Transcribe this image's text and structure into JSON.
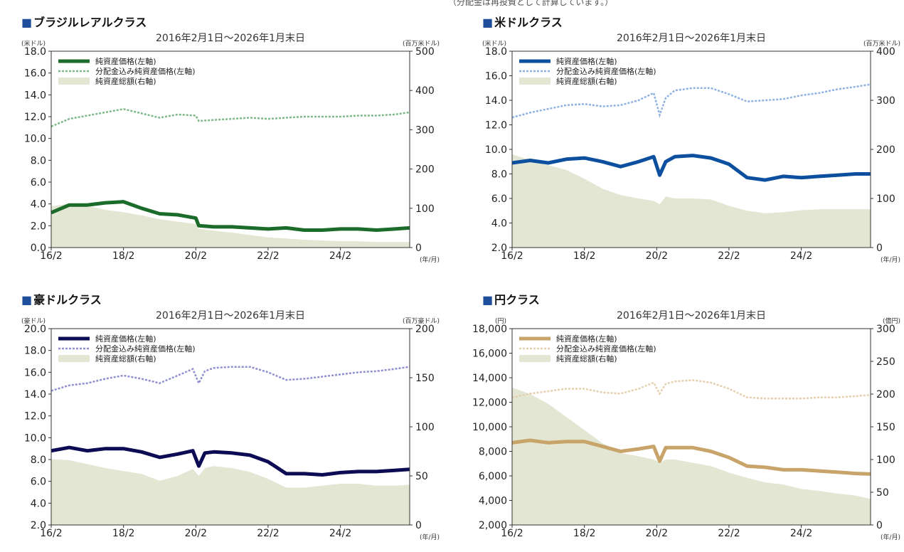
{
  "note": "（分配金は再投資として計算しています。）",
  "chart_data": [
    {
      "type": "line",
      "title": "ブラジルレアルクラス",
      "subtitle": "2016年2月1日〜2026年1月末日",
      "left_unit": "(米ドル)",
      "right_unit": "(百万米ドル)",
      "x_unit": "(年/月)",
      "x_ticks": [
        "16/2",
        "18/2",
        "20/2",
        "22/2",
        "24/2"
      ],
      "x_range": [
        "2016-02",
        "2026-01"
      ],
      "ylim_left": [
        0,
        18
      ],
      "yticks_left": [
        "0.0",
        "2.0",
        "4.0",
        "6.0",
        "8.0",
        "10.0",
        "12.0",
        "14.0",
        "16.0",
        "18.0"
      ],
      "ylim_right": [
        0,
        500
      ],
      "yticks_right": [
        "0",
        "100",
        "200",
        "300",
        "400",
        "500"
      ],
      "legend": [
        "純資産価格(左軸)",
        "分配金込み純資産価格(左軸)",
        "純資産総額(右軸)"
      ],
      "colors": {
        "nav": "#1b6b2a",
        "reinvested": "#7fb98a",
        "assets": "#e3e6d3"
      },
      "x": [
        "2016-02",
        "2016-08",
        "2017-02",
        "2017-08",
        "2018-02",
        "2018-08",
        "2019-02",
        "2019-08",
        "2020-02",
        "2020-03",
        "2020-08",
        "2021-02",
        "2021-08",
        "2022-02",
        "2022-08",
        "2023-02",
        "2023-08",
        "2024-02",
        "2024-08",
        "2025-02",
        "2025-08",
        "2026-01"
      ],
      "series": [
        {
          "name": "純資産価格(左軸)",
          "axis": "left",
          "style": "thick",
          "values": [
            3.2,
            3.9,
            3.9,
            4.1,
            4.2,
            3.6,
            3.1,
            3.0,
            2.7,
            2.0,
            1.9,
            1.9,
            1.8,
            1.7,
            1.8,
            1.6,
            1.6,
            1.7,
            1.7,
            1.6,
            1.7,
            1.8
          ]
        },
        {
          "name": "分配金込み純資産価格(左軸)",
          "axis": "left",
          "style": "dashed",
          "values": [
            11.1,
            11.8,
            12.1,
            12.4,
            12.7,
            12.3,
            11.9,
            12.2,
            12.1,
            11.6,
            11.7,
            11.8,
            11.9,
            11.8,
            11.9,
            12.0,
            12.0,
            12.0,
            12.1,
            12.1,
            12.2,
            12.4
          ]
        },
        {
          "name": "純資産総額(右軸)",
          "axis": "right",
          "style": "area",
          "values": [
            105,
            112,
            106,
            96,
            90,
            82,
            72,
            66,
            60,
            48,
            43,
            38,
            32,
            26,
            23,
            20,
            18,
            16,
            16,
            14,
            14,
            14
          ]
        }
      ]
    },
    {
      "type": "line",
      "title": "米ドルクラス",
      "subtitle": "2016年2月1日〜2026年1月末日",
      "left_unit": "(米ドル)",
      "right_unit": "(百万米ドル)",
      "x_unit": "(年/月)",
      "x_ticks": [
        "16/2",
        "18/2",
        "20/2",
        "22/2",
        "24/2"
      ],
      "x_range": [
        "2016-02",
        "2026-01"
      ],
      "ylim_left": [
        2,
        18
      ],
      "yticks_left": [
        "2.0",
        "4.0",
        "6.0",
        "8.0",
        "10.0",
        "12.0",
        "14.0",
        "16.0",
        "18.0"
      ],
      "ylim_right": [
        0,
        400
      ],
      "yticks_right": [
        "0",
        "100",
        "200",
        "300",
        "400"
      ],
      "legend": [
        "純資産価格(左軸)",
        "分配金込み純資産価格(左軸)",
        "純資産総額(右軸)"
      ],
      "colors": {
        "nav": "#0b4f9e",
        "reinvested": "#8fb2e0",
        "assets": "#e3e6d3"
      },
      "x": [
        "2016-02",
        "2016-08",
        "2017-02",
        "2017-08",
        "2018-02",
        "2018-08",
        "2019-02",
        "2019-08",
        "2020-01",
        "2020-03",
        "2020-05",
        "2020-08",
        "2021-02",
        "2021-08",
        "2022-02",
        "2022-08",
        "2023-02",
        "2023-08",
        "2024-02",
        "2024-08",
        "2025-02",
        "2025-08",
        "2026-01"
      ],
      "series": [
        {
          "name": "純資産価格(左軸)",
          "axis": "left",
          "style": "thick",
          "values": [
            8.9,
            9.1,
            8.9,
            9.2,
            9.3,
            9.0,
            8.6,
            9.0,
            9.4,
            7.9,
            9.0,
            9.4,
            9.5,
            9.3,
            8.8,
            7.7,
            7.5,
            7.8,
            7.7,
            7.8,
            7.9,
            8.0,
            8.0
          ]
        },
        {
          "name": "分配金込み純資産価格(左軸)",
          "axis": "left",
          "style": "dashed",
          "values": [
            12.6,
            13.0,
            13.3,
            13.6,
            13.7,
            13.5,
            13.6,
            14.0,
            14.6,
            12.8,
            14.2,
            14.8,
            15.0,
            15.0,
            14.5,
            13.9,
            14.0,
            14.1,
            14.4,
            14.6,
            14.9,
            15.1,
            15.3
          ]
        },
        {
          "name": "純資産総額(右軸)",
          "axis": "right",
          "style": "area",
          "values": [
            190,
            178,
            168,
            158,
            140,
            120,
            107,
            100,
            95,
            88,
            104,
            100,
            100,
            98,
            85,
            75,
            70,
            72,
            76,
            78,
            78,
            78,
            78
          ]
        }
      ]
    },
    {
      "type": "line",
      "title": "豪ドルクラス",
      "subtitle": "2016年2月1日〜2026年1月末日",
      "left_unit": "(豪ドル)",
      "right_unit": "(百万豪ドル)",
      "x_unit": "(年/月)",
      "x_ticks": [
        "16/2",
        "18/2",
        "20/2",
        "22/2",
        "24/2"
      ],
      "x_range": [
        "2016-02",
        "2026-01"
      ],
      "ylim_left": [
        2,
        20
      ],
      "yticks_left": [
        "2.0",
        "4.0",
        "6.0",
        "8.0",
        "10.0",
        "12.0",
        "14.0",
        "16.0",
        "18.0",
        "20.0"
      ],
      "ylim_right": [
        0,
        200
      ],
      "yticks_right": [
        "0",
        "50",
        "100",
        "150",
        "200"
      ],
      "legend": [
        "純資産価格(左軸)",
        "分配金込み純資産価格(左軸)",
        "純資産総額(右軸)"
      ],
      "colors": {
        "nav": "#0c0c55",
        "reinvested": "#9090d0",
        "assets": "#e3e6d3"
      },
      "x": [
        "2016-02",
        "2016-08",
        "2017-02",
        "2017-08",
        "2018-02",
        "2018-08",
        "2019-02",
        "2019-08",
        "2020-01",
        "2020-03",
        "2020-05",
        "2020-08",
        "2021-02",
        "2021-08",
        "2022-02",
        "2022-08",
        "2023-02",
        "2023-08",
        "2024-02",
        "2024-08",
        "2025-02",
        "2025-08",
        "2026-01"
      ],
      "series": [
        {
          "name": "純資産価格(左軸)",
          "axis": "left",
          "style": "thick",
          "values": [
            8.8,
            9.1,
            8.8,
            9.0,
            9.0,
            8.7,
            8.2,
            8.5,
            8.8,
            7.4,
            8.6,
            8.7,
            8.6,
            8.4,
            7.8,
            6.7,
            6.7,
            6.6,
            6.8,
            6.9,
            6.9,
            7.0,
            7.1
          ]
        },
        {
          "name": "分配金込み純資産価格(左軸)",
          "axis": "left",
          "style": "dashed",
          "values": [
            14.3,
            14.8,
            15.0,
            15.4,
            15.7,
            15.4,
            15.0,
            15.7,
            16.3,
            15.0,
            16.1,
            16.4,
            16.5,
            16.5,
            16.0,
            15.3,
            15.4,
            15.6,
            15.8,
            16.0,
            16.1,
            16.3,
            16.5
          ]
        },
        {
          "name": "純資産総額(右軸)",
          "axis": "right",
          "style": "area",
          "values": [
            67,
            66,
            62,
            58,
            55,
            52,
            45,
            50,
            57,
            50,
            58,
            60,
            58,
            54,
            47,
            38,
            38,
            40,
            42,
            42,
            40,
            40,
            41
          ]
        }
      ]
    },
    {
      "type": "line",
      "title": "円クラス",
      "subtitle": "2016年2月1日〜2026年1月末日",
      "left_unit": "(円)",
      "right_unit": "(億円)",
      "x_unit": "(年/月)",
      "x_ticks": [
        "16/2",
        "18/2",
        "20/2",
        "22/2",
        "24/2"
      ],
      "x_range": [
        "2016-02",
        "2026-01"
      ],
      "ylim_left": [
        2000,
        18000
      ],
      "yticks_left": [
        "2,000",
        "4,000",
        "6,000",
        "8,000",
        "10,000",
        "12,000",
        "14,000",
        "16,000",
        "18,000"
      ],
      "ylim_right": [
        0,
        300
      ],
      "yticks_right": [
        "0",
        "50",
        "100",
        "150",
        "200",
        "250",
        "300"
      ],
      "legend": [
        "純資産価格(左軸)",
        "分配金込み純資産価格(左軸)",
        "純資産総額(右軸)"
      ],
      "colors": {
        "nav": "#c9a46a",
        "reinvested": "#e6cfae",
        "assets": "#e3e6d3"
      },
      "x": [
        "2016-02",
        "2016-08",
        "2017-02",
        "2017-08",
        "2018-02",
        "2018-08",
        "2019-02",
        "2019-08",
        "2020-01",
        "2020-03",
        "2020-05",
        "2020-08",
        "2021-02",
        "2021-08",
        "2022-02",
        "2022-08",
        "2023-02",
        "2023-08",
        "2024-02",
        "2024-08",
        "2025-02",
        "2025-08",
        "2026-01"
      ],
      "series": [
        {
          "name": "純資産価格(左軸)",
          "axis": "left",
          "style": "thick",
          "values": [
            8700,
            8900,
            8700,
            8800,
            8800,
            8400,
            8000,
            8200,
            8400,
            7200,
            8300,
            8300,
            8300,
            8000,
            7500,
            6800,
            6700,
            6500,
            6500,
            6400,
            6300,
            6200,
            6150
          ]
        },
        {
          "name": "分配金込み純資産価格(左軸)",
          "axis": "left",
          "style": "dashed",
          "values": [
            12400,
            12700,
            12900,
            13100,
            13100,
            12800,
            12700,
            13100,
            13600,
            12700,
            13500,
            13700,
            13800,
            13600,
            13100,
            12400,
            12300,
            12300,
            12300,
            12400,
            12400,
            12500,
            12600
          ]
        },
        {
          "name": "純資産総額(右軸)",
          "axis": "right",
          "style": "area",
          "values": [
            210,
            200,
            185,
            165,
            145,
            125,
            110,
            105,
            100,
            95,
            100,
            100,
            95,
            90,
            80,
            72,
            65,
            62,
            55,
            52,
            48,
            45,
            40
          ]
        }
      ]
    }
  ]
}
